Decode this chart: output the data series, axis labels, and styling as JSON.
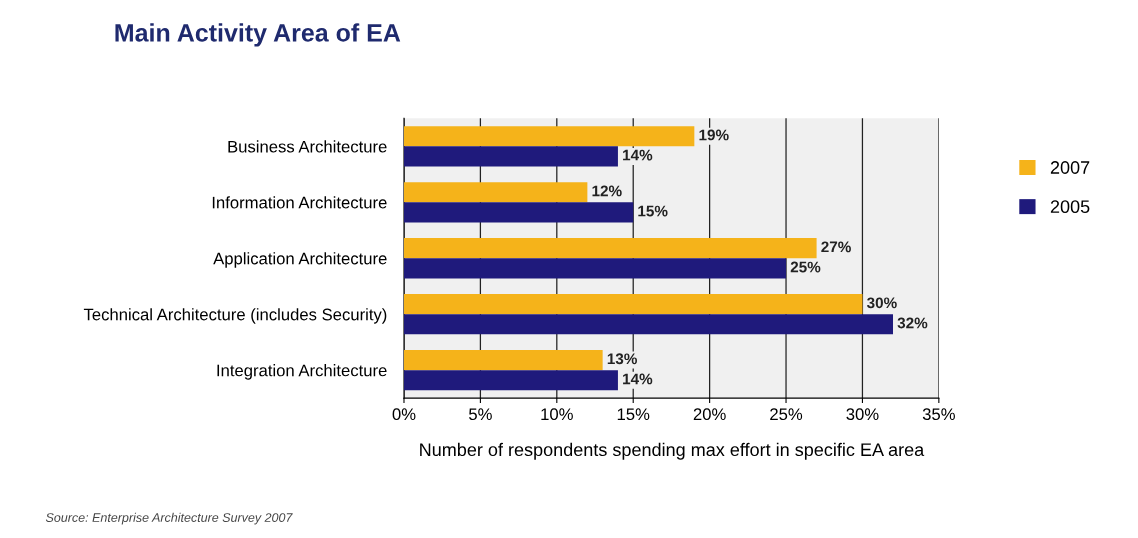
{
  "chart_data": {
    "type": "bar",
    "orientation": "horizontal",
    "title": "Main Activity Area of EA",
    "xlabel": "Number of respondents spending max effort in specific EA area",
    "categories": [
      "Business Architecture",
      "Information Architecture",
      "Application Architecture",
      "Technical Architecture (includes Security)",
      "Integration Architecture"
    ],
    "series": [
      {
        "name": "2007",
        "color": "#f5b31a",
        "values": [
          19,
          12,
          27,
          30,
          13
        ],
        "value_labels": [
          "19%",
          "12%",
          "27%",
          "30%",
          "13%"
        ]
      },
      {
        "name": "2005",
        "color": "#1f1a7c",
        "values": [
          14,
          15,
          25,
          32,
          14
        ],
        "value_labels": [
          "14%",
          "15%",
          "25%",
          "32%",
          "14%"
        ]
      }
    ],
    "xlim": [
      0,
      35
    ],
    "xticks": [
      {
        "value": 0,
        "label": "0%"
      },
      {
        "value": 5,
        "label": "5%"
      },
      {
        "value": 10,
        "label": "10%"
      },
      {
        "value": 15,
        "label": "15%"
      },
      {
        "value": 20,
        "label": "20%"
      },
      {
        "value": 25,
        "label": "25%"
      },
      {
        "value": 30,
        "label": "30%"
      },
      {
        "value": 35,
        "label": "35%"
      }
    ],
    "grid": "x",
    "legend": "right",
    "annotations": [
      "Source: Enterprise Architecture Survey 2007"
    ]
  }
}
